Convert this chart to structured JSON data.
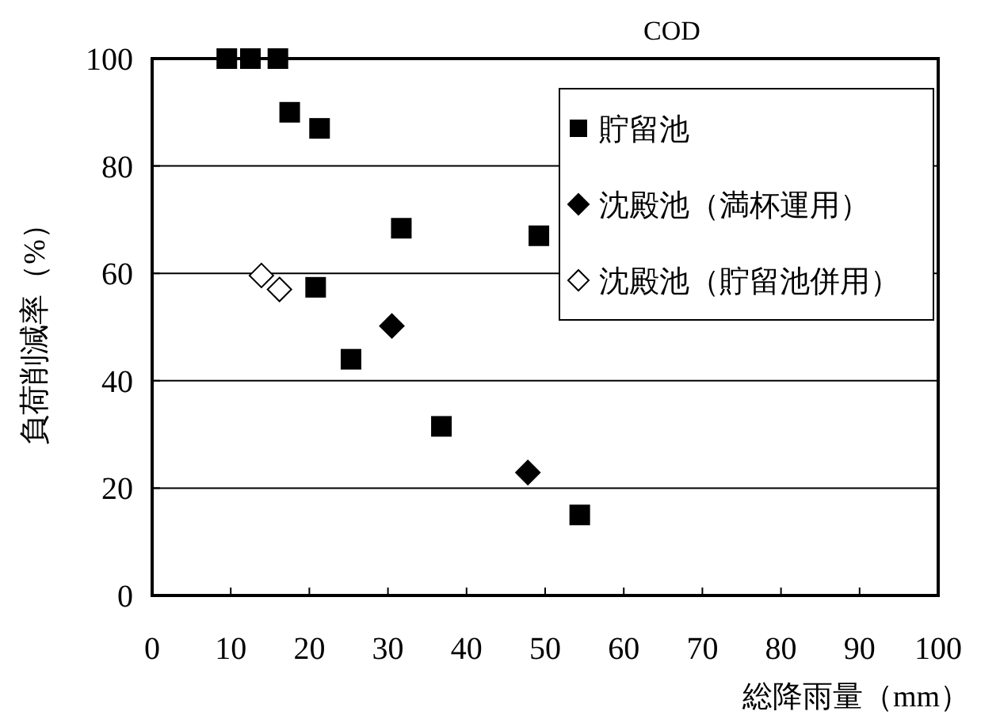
{
  "chart_data": {
    "type": "scatter",
    "title": "COD",
    "xlabel": "総降雨量（mm）",
    "ylabel": "負荷削減率（%）",
    "xlim": [
      0,
      100
    ],
    "xticks": [
      0,
      10,
      20,
      30,
      40,
      50,
      60,
      70,
      80,
      90,
      100
    ],
    "ylim": [
      0,
      100
    ],
    "yticks": [
      0,
      20,
      40,
      60,
      80,
      100
    ],
    "grid": "y",
    "legend": "top right",
    "series": [
      {
        "name": "貯留池",
        "color": "#000000",
        "marker": "square",
        "x": [
          9.5,
          12.5,
          16,
          17.5,
          21.3,
          31.7,
          49.2,
          20.8,
          25.3,
          36.8,
          54.4
        ],
        "values": [
          100,
          100,
          100,
          90,
          87,
          68.4,
          67,
          57.4,
          44,
          31.5,
          15
        ]
      },
      {
        "name": "沈殿池（満杯運用）",
        "color": "#000000",
        "marker": "diamond",
        "x": [
          30.5,
          47.8
        ],
        "values": [
          50.2,
          22.9
        ]
      },
      {
        "name": "沈殿池（貯留池併用）",
        "color": "#ffffff",
        "marker": "diamond",
        "x": [
          13.9,
          16.2
        ],
        "values": [
          59.6,
          57
        ]
      }
    ]
  }
}
